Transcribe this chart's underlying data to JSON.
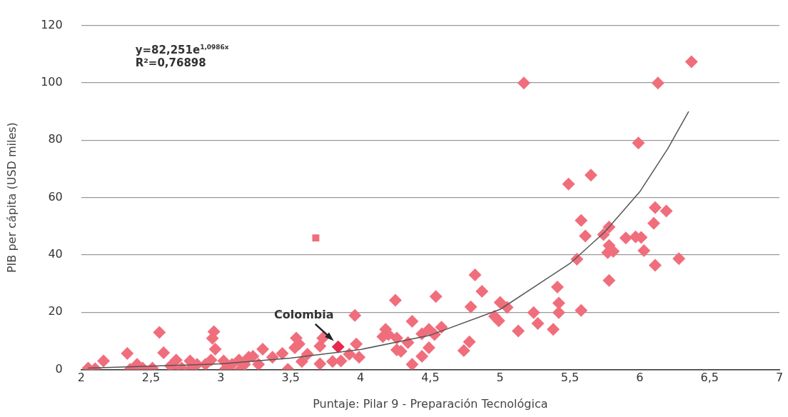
{
  "chart_data": {
    "type": "scatter",
    "xlabel": "Puntaje: Pilar 9 - Preparación Tecnológica",
    "ylabel": "PIB per cápita (USD miles)",
    "xlim": [
      2,
      7
    ],
    "ylim": [
      0,
      120
    ],
    "xticks": [
      2,
      {
        "value": 2.5,
        "label": "2,5"
      },
      3,
      {
        "value": 3.5,
        "label": "3,5"
      },
      4,
      {
        "value": 4.5,
        "label": "4,5"
      },
      5,
      {
        "value": 5.5,
        "label": "5,5"
      },
      6,
      {
        "value": 6.5,
        "label": "6,5"
      },
      7
    ],
    "yticks": [
      0,
      20,
      40,
      60,
      80,
      100,
      120
    ],
    "grid": "y",
    "legend": false,
    "marker": "diamond",
    "annotations": [
      "y=82,251e$^{1,0986x}$",
      "R²=0,76898",
      {
        "text": "Colombia",
        "x": 3.84,
        "y": 7.9
      }
    ],
    "series": [
      {
        "x": [
          2.05,
          2.1,
          2.16,
          2.33,
          2.35,
          2.4,
          2.44,
          2.51,
          2.56,
          2.59,
          2.64,
          2.68,
          2.66,
          2.78,
          2.78,
          2.83,
          2.95,
          2.94,
          2.96,
          2.93,
          3.02,
          3.03,
          3.13,
          3.2,
          3.14,
          3.3,
          3.23,
          3.37,
          3.44,
          3.54,
          3.48,
          3.53,
          3.56,
          3.58,
          3.62,
          3.71,
          3.71,
          3.73,
          3.8,
          3.84,
          3.86,
          3.92,
          3.96,
          3.97,
          3.99,
          4.82,
          4.87,
          4.54,
          4.25,
          4.79,
          5.0,
          4.37,
          4.18,
          4.2,
          4.16,
          4.26,
          4.44,
          4.49,
          4.58,
          4.53,
          4.34,
          4.29,
          4.26,
          4.49,
          4.44,
          4.37,
          4.74,
          4.78,
          4.96,
          4.99,
          5.17,
          6.13,
          6.37,
          5.99,
          5.65,
          5.49,
          6.11,
          6.19,
          6.1,
          5.58,
          5.61,
          5.78,
          5.74,
          5.9,
          5.97,
          6.01,
          5.78,
          5.77,
          5.81,
          6.03,
          6.28,
          6.11,
          5.55,
          5.78,
          5.41,
          5.05,
          5.42,
          5.24,
          5.42,
          5.58,
          5.27,
          5.13,
          5.38,
          3.08,
          3.17,
          3.27,
          2.89,
          2.72
        ],
        "values": [
          0.5,
          0.3,
          3,
          5.6,
          0.1,
          1.8,
          0.5,
          0.5,
          13,
          5.9,
          1.3,
          3.3,
          0.1,
          3,
          0.1,
          1.8,
          13.2,
          10.9,
          7.1,
          3.3,
          3,
          0.1,
          3.3,
          4.3,
          0.1,
          7.1,
          4.6,
          4.3,
          5.6,
          11,
          0.1,
          7.6,
          8.9,
          2.8,
          5.4,
          2,
          8.2,
          11,
          2.8,
          7.9,
          3,
          5.4,
          18.9,
          8.9,
          4.3,
          33,
          27.3,
          25.5,
          24.2,
          21.9,
          23.4,
          16.8,
          14,
          12.2,
          11.5,
          11,
          12.5,
          14,
          14.8,
          12.2,
          9.4,
          6.4,
          6.9,
          7.6,
          4.6,
          1.8,
          6.6,
          9.7,
          18.6,
          17,
          99.9,
          99.9,
          107.3,
          79,
          67.8,
          64.7,
          56.5,
          55.3,
          51,
          52,
          46.6,
          49.7,
          47.1,
          45.9,
          46.3,
          46.1,
          43.3,
          40.8,
          41.2,
          41.5,
          38.7,
          36.4,
          38.5,
          31.1,
          28.8,
          21.7,
          23.2,
          19.9,
          19.9,
          20.6,
          16.1,
          13.5,
          14,
          1.8,
          1.8,
          1.8,
          1.8,
          0.5
        ],
        "colors": [
          "#f06e7c",
          "#f06e7c",
          "#f06e7c",
          "#f06e7c",
          "#f06e7c",
          "#f06e7c",
          "#f06e7c",
          "#f06e7c",
          "#f06e7c",
          "#f06e7c",
          "#f06e7c",
          "#f06e7c",
          "#f06e7c",
          "#f06e7c",
          "#f06e7c",
          "#f06e7c",
          "#f06e7c",
          "#f06e7c",
          "#f06e7c",
          "#f06e7c",
          "#f06e7c",
          "#f06e7c",
          "#f06e7c",
          "#f06e7c",
          "#f06e7c",
          "#f06e7c",
          "#f06e7c",
          "#f06e7c",
          "#f06e7c",
          "#f06e7c",
          "#f06e7c",
          "#f06e7c",
          "#f06e7c",
          "#f06e7c",
          "#f06e7c",
          "#f06e7c",
          "#f06e7c",
          "#f06e7c",
          "#f06e7c",
          "#e8284f",
          "#f06e7c",
          "#f06e7c",
          "#f06e7c",
          "#f06e7c",
          "#f06e7c",
          "#f06e7c",
          "#f06e7c",
          "#f06e7c",
          "#f06e7c",
          "#f06e7c",
          "#f06e7c",
          "#f06e7c",
          "#f06e7c",
          "#f06e7c",
          "#f06e7c",
          "#f06e7c",
          "#f06e7c",
          "#f06e7c",
          "#f06e7c",
          "#f06e7c",
          "#f06e7c",
          "#f06e7c",
          "#f06e7c",
          "#f06e7c",
          "#f06e7c",
          "#f06e7c",
          "#f06e7c",
          "#f06e7c",
          "#f06e7c",
          "#f06e7c",
          "#f06e7c",
          "#f06e7c",
          "#f06e7c",
          "#f06e7c",
          "#f06e7c",
          "#f06e7c",
          "#f06e7c",
          "#f06e7c",
          "#f06e7c",
          "#f06e7c",
          "#f06e7c",
          "#f06e7c",
          "#f06e7c",
          "#f06e7c",
          "#f06e7c",
          "#f06e7c",
          "#f06e7c",
          "#f06e7c",
          "#f06e7c",
          "#f06e7c",
          "#f06e7c",
          "#f06e7c",
          "#f06e7c",
          "#f06e7c",
          "#f06e7c",
          "#f06e7c",
          "#f06e7c",
          "#f06e7c",
          "#f06e7c",
          "#f06e7c",
          "#f06e7c",
          "#f06e7c",
          "#f06e7c",
          "#f06e7c",
          "#f06e7c",
          "#f06e7c",
          "#f06e7c",
          "#f06e7c"
        ]
      },
      {
        "color": "#f06e7c",
        "marker": "square",
        "x": [
          3.68
        ],
        "values": [
          45.9
        ]
      },
      {
        "type": "line",
        "color": "#555555",
        "marker": "none",
        "x": [
          2.05,
          2.5,
          3,
          3.5,
          4,
          4.5,
          5,
          5.5,
          5.75,
          6,
          6.2,
          6.35
        ],
        "values": [
          0.5,
          1.2,
          2,
          4,
          7,
          12,
          21,
          37,
          48,
          62,
          77,
          90
        ]
      }
    ]
  }
}
